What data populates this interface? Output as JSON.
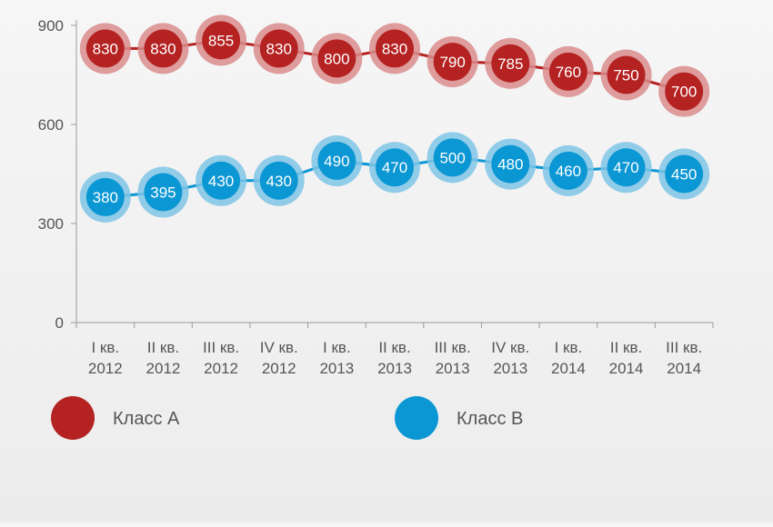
{
  "chart_data": {
    "type": "line",
    "categories": [
      [
        "I кв.",
        "2012"
      ],
      [
        "II кв.",
        "2012"
      ],
      [
        "III кв.",
        "2012"
      ],
      [
        "IV кв.",
        "2012"
      ],
      [
        "I кв.",
        "2013"
      ],
      [
        "II кв.",
        "2013"
      ],
      [
        "III кв.",
        "2013"
      ],
      [
        "IV кв.",
        "2013"
      ],
      [
        "I кв.",
        "2014"
      ],
      [
        "II кв.",
        "2014"
      ],
      [
        "III кв.",
        "2014"
      ]
    ],
    "series": [
      {
        "name": "Класс A",
        "color": "#b52222",
        "halo": "#d98c8c",
        "values": [
          830,
          830,
          855,
          830,
          800,
          830,
          790,
          785,
          760,
          750,
          700
        ]
      },
      {
        "name": "Класс B",
        "color": "#0b97d3",
        "halo": "#7fc4e6",
        "values": [
          380,
          395,
          430,
          430,
          490,
          470,
          500,
          480,
          460,
          470,
          450
        ]
      }
    ],
    "yticks": [
      0,
      300,
      600,
      900
    ],
    "ylim": [
      0,
      900
    ],
    "grid": false,
    "legend_position": "bottom"
  }
}
